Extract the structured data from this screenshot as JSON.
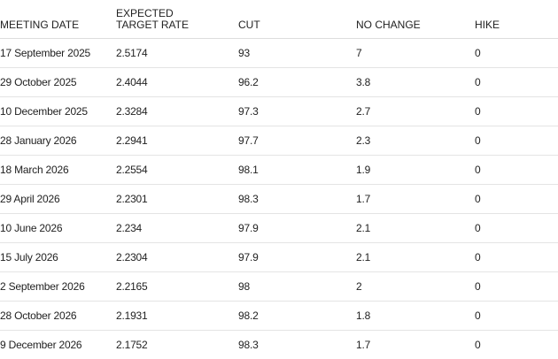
{
  "table": {
    "columns": [
      "MEETING DATE",
      "EXPECTED TARGET RATE",
      "CUT",
      "NO CHANGE",
      "HIKE"
    ],
    "rows": [
      [
        "17 September 2025",
        "2.5174",
        "93",
        "7",
        "0"
      ],
      [
        "29 October 2025",
        "2.4044",
        "96.2",
        "3.8",
        "0"
      ],
      [
        "10 December 2025",
        "2.3284",
        "97.3",
        "2.7",
        "0"
      ],
      [
        "28 January 2026",
        "2.2941",
        "97.7",
        "2.3",
        "0"
      ],
      [
        "18 March 2026",
        "2.2554",
        "98.1",
        "1.9",
        "0"
      ],
      [
        "29 April 2026",
        "2.2301",
        "98.3",
        "1.7",
        "0"
      ],
      [
        "10 June 2026",
        "2.234",
        "97.9",
        "2.1",
        "0"
      ],
      [
        "15 July 2026",
        "2.2304",
        "97.9",
        "2.1",
        "0"
      ],
      [
        "2 September 2026",
        "2.2165",
        "98",
        "2",
        "0"
      ],
      [
        "28 October 2026",
        "2.1931",
        "98.2",
        "1.8",
        "0"
      ],
      [
        "9 December 2026",
        "2.1752",
        "98.3",
        "1.7",
        "0"
      ]
    ]
  }
}
